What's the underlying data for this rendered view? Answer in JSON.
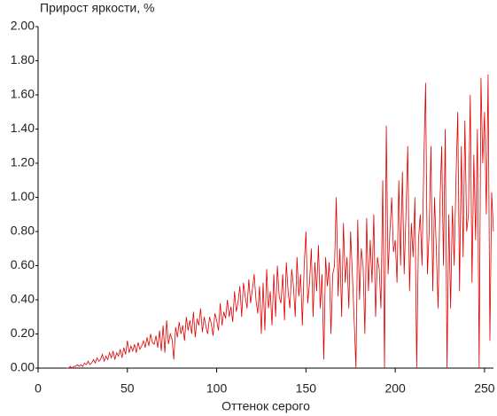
{
  "chart_data": {
    "type": "line",
    "title": "Прирост яркости, %",
    "x_label": "Оттенок серого",
    "color": "#e00000",
    "x": [
      16,
      17,
      18,
      19,
      20,
      21,
      22,
      23,
      24,
      25,
      26,
      27,
      28,
      29,
      30,
      31,
      32,
      33,
      34,
      35,
      36,
      37,
      38,
      39,
      40,
      41,
      42,
      43,
      44,
      45,
      46,
      47,
      48,
      49,
      50,
      51,
      52,
      53,
      54,
      55,
      56,
      57,
      58,
      59,
      60,
      61,
      62,
      63,
      64,
      65,
      66,
      67,
      68,
      69,
      70,
      71,
      72,
      73,
      74,
      75,
      76,
      77,
      78,
      79,
      80,
      81,
      82,
      83,
      84,
      85,
      86,
      87,
      88,
      89,
      90,
      91,
      92,
      93,
      94,
      95,
      96,
      97,
      98,
      99,
      100,
      101,
      102,
      103,
      104,
      105,
      106,
      107,
      108,
      109,
      110,
      111,
      112,
      113,
      114,
      115,
      116,
      117,
      118,
      119,
      120,
      121,
      122,
      123,
      124,
      125,
      126,
      127,
      128,
      129,
      130,
      131,
      132,
      133,
      134,
      135,
      136,
      137,
      138,
      139,
      140,
      141,
      142,
      143,
      144,
      145,
      146,
      147,
      148,
      149,
      150,
      151,
      152,
      153,
      154,
      155,
      156,
      157,
      158,
      159,
      160,
      161,
      162,
      163,
      164,
      165,
      166,
      167,
      168,
      169,
      170,
      171,
      172,
      173,
      174,
      175,
      176,
      177,
      178,
      179,
      180,
      181,
      182,
      183,
      184,
      185,
      186,
      187,
      188,
      189,
      190,
      191,
      192,
      193,
      194,
      195,
      196,
      197,
      198,
      199,
      200,
      201,
      202,
      203,
      204,
      205,
      206,
      207,
      208,
      209,
      210,
      211,
      212,
      213,
      214,
      215,
      216,
      217,
      218,
      219,
      220,
      221,
      222,
      223,
      224,
      225,
      226,
      227,
      228,
      229,
      230,
      231,
      232,
      233,
      234,
      235,
      236,
      237,
      238,
      239,
      240,
      241,
      242,
      243,
      244,
      245,
      246,
      247,
      248,
      249,
      250,
      251,
      252,
      253,
      254,
      255
    ],
    "values": [
      0,
      0,
      0.01,
      0,
      0.01,
      0.01,
      0.02,
      0.01,
      0.02,
      0.01,
      0.03,
      0.02,
      0.04,
      0.02,
      0.03,
      0.05,
      0.03,
      0.06,
      0.04,
      0.05,
      0.08,
      0.04,
      0.07,
      0.05,
      0.09,
      0.06,
      0.1,
      0.05,
      0.09,
      0.07,
      0.11,
      0.06,
      0.12,
      0.08,
      0.16,
      0.09,
      0.13,
      0.1,
      0.14,
      0.09,
      0.15,
      0.11,
      0.13,
      0.16,
      0.12,
      0.18,
      0.13,
      0.2,
      0.15,
      0.14,
      0.19,
      0.12,
      0.22,
      0.1,
      0.25,
      0.09,
      0.28,
      0.14,
      0.2,
      0.17,
      0.05,
      0.24,
      0.18,
      0.27,
      0.2,
      0.25,
      0.16,
      0.3,
      0.22,
      0.28,
      0.2,
      0.33,
      0.18,
      0.29,
      0.25,
      0.35,
      0.21,
      0.3,
      0.24,
      0.2,
      0.3,
      0.26,
      0.19,
      0.32,
      0.28,
      0.22,
      0.38,
      0.25,
      0.33,
      0.29,
      0.4,
      0.3,
      0.36,
      0.27,
      0.45,
      0.33,
      0.39,
      0.48,
      0.3,
      0.5,
      0.42,
      0.35,
      0.52,
      0.38,
      0.46,
      0.55,
      0.4,
      0.32,
      0.48,
      0.2,
      0.5,
      0.22,
      0.58,
      0.35,
      0.45,
      0.25,
      0.55,
      0.3,
      0.6,
      0.42,
      0.38,
      0.55,
      0.28,
      0.62,
      0.45,
      0.35,
      0.58,
      0.48,
      0.3,
      0.65,
      0.42,
      0.55,
      0.25,
      0.6,
      0.8,
      0.38,
      0.5,
      0.7,
      0.3,
      0.62,
      0.45,
      0.72,
      0.35,
      0.55,
      0.05,
      0.65,
      0.48,
      0.62,
      0.2,
      0.55,
      0.6,
      1.0,
      0.42,
      0.7,
      0.3,
      0.85,
      0.5,
      0.65,
      0.35,
      0.8,
      0.55,
      0.28,
      0.0,
      0.87,
      0.4,
      0.7,
      0.6,
      0.2,
      0.88,
      0.45,
      0.75,
      0.5,
      0.9,
      0.3,
      0.65,
      0.58,
      0.35,
      1.1,
      0.0,
      1.42,
      0.55,
      0.8,
      1.0,
      0.68,
      0.75,
      0.5,
      1.1,
      0.6,
      1.15,
      0.55,
      0.9,
      1.3,
      0.45,
      0.85,
      0.65,
      1.0,
      0.0,
      0.75,
      0.9,
      0.6,
      1.2,
      1.67,
      0.55,
      0.8,
      1.3,
      0.45,
      1.0,
      0.7,
      0.35,
      0.95,
      1.3,
      0.6,
      1.4,
      0.0,
      0.9,
      0.35,
      0.95,
      0.6,
      1.1,
      1.5,
      0.45,
      1.3,
      0.65,
      1.45,
      0.8,
      0.9,
      1.6,
      0.5,
      1.25,
      0.75,
      1.4,
      0.0,
      1.7,
      1.2,
      1.5,
      0.9,
      1.72,
      0.16,
      1.03,
      0.8
    ],
    "xlim": [
      0,
      255
    ],
    "xticks": [
      0,
      50,
      100,
      150,
      200,
      250
    ],
    "ylim": [
      0,
      2
    ],
    "yticks": [
      {
        "value": 0,
        "label": "0.00"
      },
      {
        "value": 0.2,
        "label": "0.20"
      },
      {
        "value": 0.4,
        "label": "0.40"
      },
      {
        "value": 0.6,
        "label": "0.60"
      },
      {
        "value": 0.8,
        "label": "0.80"
      },
      {
        "value": 1,
        "label": "1.00"
      },
      {
        "value": 1.2,
        "label": "1.20"
      },
      {
        "value": 1.4,
        "label": "1.40"
      },
      {
        "value": 1.6,
        "label": "1.60"
      },
      {
        "value": 1.8,
        "label": "1.80"
      },
      {
        "value": 2,
        "label": "2.00"
      }
    ]
  }
}
